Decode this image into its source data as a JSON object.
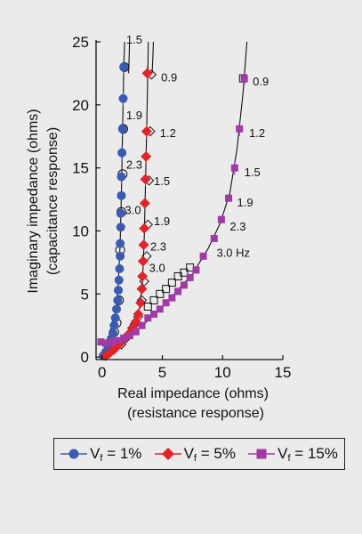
{
  "chart_data": {
    "type": "scatter",
    "xlabel": "Real impedance (ohms)",
    "xlabel_sub": "(resistance response)",
    "ylabel": "Imaginary impedance (ohms)",
    "ylabel_sub": "(capacitance response)",
    "xlim": [
      -0.5,
      15
    ],
    "ylim": [
      -0.2,
      25
    ],
    "xticks": [
      0,
      5,
      10,
      15
    ],
    "yticks": [
      0,
      5,
      10,
      15,
      20,
      25
    ],
    "grid": false,
    "legend_position": "bottom",
    "series": [
      {
        "name_prefix": "V",
        "name_sub": "f",
        "name_suffix": "= 1%",
        "color": "#3b5bb0",
        "marker": "circle",
        "points": [
          [
            0.1,
            0.1
          ],
          [
            0.3,
            0.4
          ],
          [
            0.5,
            0.8
          ],
          [
            0.7,
            1.3
          ],
          [
            0.9,
            1.9
          ],
          [
            1.0,
            2.5
          ],
          [
            1.1,
            3.1
          ],
          [
            1.2,
            3.8
          ],
          [
            1.3,
            4.5
          ],
          [
            1.35,
            5.3
          ],
          [
            1.4,
            6.1
          ],
          [
            1.45,
            7.0
          ],
          [
            1.5,
            8.0
          ],
          [
            1.5,
            9.0
          ],
          [
            1.55,
            10.3
          ],
          [
            1.55,
            11.4
          ],
          [
            1.6,
            12.8
          ],
          [
            1.6,
            14.3
          ],
          [
            1.65,
            16.2
          ],
          [
            1.7,
            18.1
          ],
          [
            1.75,
            20.5
          ],
          [
            1.8,
            23.0
          ]
        ],
        "hollow_points": [
          [
            0.4,
            0.3
          ],
          [
            0.6,
            0.8
          ],
          [
            0.8,
            1.4
          ],
          [
            1.0,
            2.0
          ],
          [
            1.2,
            2.7
          ],
          [
            1.4,
            4.5
          ],
          [
            1.5,
            8.5
          ],
          [
            1.6,
            11.5
          ],
          [
            1.7,
            14.5
          ],
          [
            1.75,
            18.1
          ],
          [
            1.85,
            23.0
          ]
        ],
        "fit": [
          [
            -0.1,
            0
          ],
          [
            0.2,
            0.3
          ],
          [
            0.5,
            0.8
          ],
          [
            0.8,
            1.6
          ],
          [
            1.0,
            2.6
          ],
          [
            1.2,
            4.0
          ],
          [
            1.35,
            6.0
          ],
          [
            1.5,
            9.0
          ],
          [
            1.6,
            13.0
          ],
          [
            1.7,
            18.0
          ],
          [
            1.8,
            23.0
          ],
          [
            1.9,
            26.0
          ]
        ],
        "fit2": [
          [
            2.3,
            26.0
          ],
          [
            2.25,
            24.0
          ],
          [
            2.2,
            22.5
          ]
        ]
      },
      {
        "name_prefix": "V",
        "name_sub": "f",
        "name_suffix": "= 5%",
        "color": "#e0242a",
        "marker": "diamond",
        "points": [
          [
            0.3,
            0.1
          ],
          [
            0.6,
            0.3
          ],
          [
            1.0,
            0.6
          ],
          [
            1.4,
            1.0
          ],
          [
            1.8,
            1.4
          ],
          [
            2.2,
            1.8
          ],
          [
            2.5,
            2.3
          ],
          [
            2.8,
            2.8
          ],
          [
            3.0,
            3.4
          ],
          [
            3.2,
            4.3
          ],
          [
            3.3,
            5.4
          ],
          [
            3.35,
            6.4
          ],
          [
            3.4,
            7.6
          ],
          [
            3.45,
            8.9
          ],
          [
            3.5,
            10.2
          ],
          [
            3.55,
            12.2
          ],
          [
            3.6,
            14.1
          ],
          [
            3.65,
            15.9
          ],
          [
            3.7,
            17.9
          ],
          [
            3.75,
            22.5
          ]
        ],
        "hollow_points": [
          [
            1.6,
            1.0
          ],
          [
            2.0,
            1.5
          ],
          [
            2.4,
            2.0
          ],
          [
            2.7,
            2.6
          ],
          [
            3.0,
            3.2
          ],
          [
            3.3,
            4.5
          ],
          [
            3.5,
            6.0
          ],
          [
            3.7,
            8.0
          ],
          [
            3.8,
            10.5
          ],
          [
            3.9,
            14.0
          ],
          [
            4.0,
            17.9
          ],
          [
            4.1,
            22.4
          ]
        ],
        "fit": [
          [
            0.2,
            0
          ],
          [
            1.0,
            0.6
          ],
          [
            2.0,
            1.6
          ],
          [
            2.7,
            2.6
          ],
          [
            3.1,
            3.8
          ],
          [
            3.35,
            6.0
          ],
          [
            3.5,
            9.5
          ],
          [
            3.6,
            13.5
          ],
          [
            3.7,
            18.0
          ],
          [
            3.8,
            23.0
          ],
          [
            3.85,
            26.0
          ]
        ],
        "fit2": [
          [
            4.3,
            26.0
          ],
          [
            4.2,
            23.5
          ],
          [
            4.15,
            22.5
          ]
        ]
      },
      {
        "name_prefix": "V",
        "name_sub": "f",
        "name_suffix": "= 15%",
        "color": "#a23aa5",
        "marker": "square",
        "points": [
          [
            -0.1,
            1.2
          ],
          [
            0.3,
            1.1
          ],
          [
            0.8,
            1.2
          ],
          [
            1.3,
            1.3
          ],
          [
            1.8,
            1.5
          ],
          [
            2.3,
            1.7
          ],
          [
            2.8,
            2.0
          ],
          [
            3.3,
            2.5
          ],
          [
            3.8,
            3.1
          ],
          [
            4.3,
            3.4
          ],
          [
            4.8,
            3.8
          ],
          [
            5.3,
            4.3
          ],
          [
            5.8,
            4.7
          ],
          [
            6.3,
            5.2
          ],
          [
            6.8,
            5.7
          ],
          [
            7.3,
            6.3
          ],
          [
            7.8,
            6.9
          ],
          [
            8.4,
            8.0
          ],
          [
            9.3,
            9.4
          ],
          [
            9.9,
            10.9
          ],
          [
            10.5,
            12.6
          ],
          [
            11.0,
            15.0
          ],
          [
            11.4,
            18.1
          ],
          [
            11.8,
            22.1
          ]
        ],
        "hollow_points": [
          [
            3.8,
            4.0
          ],
          [
            4.3,
            4.5
          ],
          [
            4.8,
            5.0
          ],
          [
            5.3,
            5.4
          ],
          [
            5.8,
            5.9
          ],
          [
            6.3,
            6.4
          ],
          [
            6.8,
            6.7
          ],
          [
            7.3,
            7.1
          ],
          [
            11.7,
            22.1
          ]
        ],
        "fit": [
          [
            0,
            1.0
          ],
          [
            1.5,
            1.3
          ],
          [
            3.0,
            2.2
          ],
          [
            4.5,
            3.5
          ],
          [
            6.0,
            5.0
          ],
          [
            7.5,
            6.6
          ],
          [
            8.8,
            8.6
          ],
          [
            9.8,
            10.6
          ],
          [
            10.6,
            13.0
          ],
          [
            11.2,
            16.5
          ],
          [
            11.7,
            21.0
          ],
          [
            12.1,
            26.0
          ]
        ]
      }
    ],
    "annotations": [
      {
        "text": "1.5",
        "x": 2.0,
        "y": 25.2
      },
      {
        "text": "0.9",
        "x": 4.9,
        "y": 22.2
      },
      {
        "text": "1.9",
        "x": 2.0,
        "y": 19.2
      },
      {
        "text": "1.2",
        "x": 4.8,
        "y": 17.8
      },
      {
        "text": "2.3",
        "x": 2.0,
        "y": 15.3
      },
      {
        "text": "1.5",
        "x": 4.3,
        "y": 14.0
      },
      {
        "text": "3.0",
        "x": 1.9,
        "y": 11.7
      },
      {
        "text": "1.9",
        "x": 4.3,
        "y": 10.8
      },
      {
        "text": "2.3",
        "x": 4.0,
        "y": 8.8
      },
      {
        "text": "3.0",
        "x": 3.9,
        "y": 7.1
      },
      {
        "text": "0.9",
        "x": 12.5,
        "y": 21.9
      },
      {
        "text": "1.2",
        "x": 12.2,
        "y": 17.8
      },
      {
        "text": "1.5",
        "x": 11.8,
        "y": 14.7
      },
      {
        "text": "1.9",
        "x": 11.2,
        "y": 12.3
      },
      {
        "text": "2.3",
        "x": 10.6,
        "y": 10.4
      },
      {
        "text": "3.0 Hz",
        "x": 9.5,
        "y": 8.3
      }
    ]
  }
}
